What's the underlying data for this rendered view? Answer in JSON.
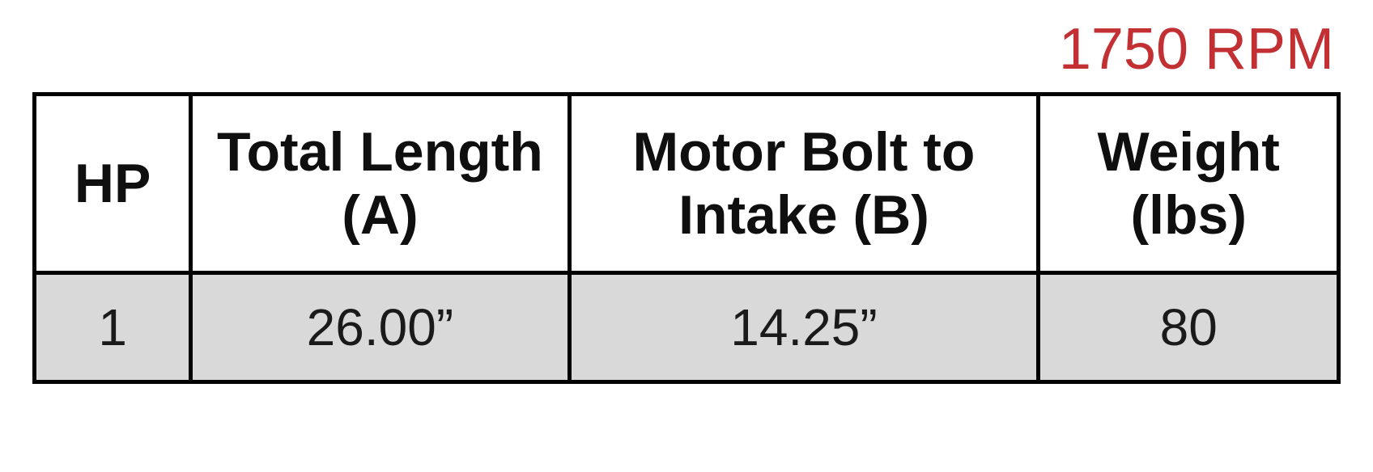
{
  "title": {
    "text": "1750 RPM",
    "color": "#c33034",
    "fontsize": 72,
    "weight": 400
  },
  "table": {
    "border_color": "#000000",
    "border_width": 5,
    "header_bg": "#ffffff",
    "row_bg": "#d9d9d9",
    "header_fontsize": 68,
    "cell_fontsize": 64,
    "columns": [
      {
        "key": "hp",
        "label": "HP",
        "width_pct": 12
      },
      {
        "key": "total_length",
        "label": "Total Length (A)",
        "width_pct": 29
      },
      {
        "key": "motor_bolt",
        "label": "Motor Bolt to Intake (B)",
        "width_pct": 36
      },
      {
        "key": "weight",
        "label": "Weight (lbs)",
        "width_pct": 23
      }
    ],
    "rows": [
      {
        "hp": "1",
        "total_length": "26.00”",
        "motor_bolt": "14.25”",
        "weight": "80"
      }
    ]
  }
}
